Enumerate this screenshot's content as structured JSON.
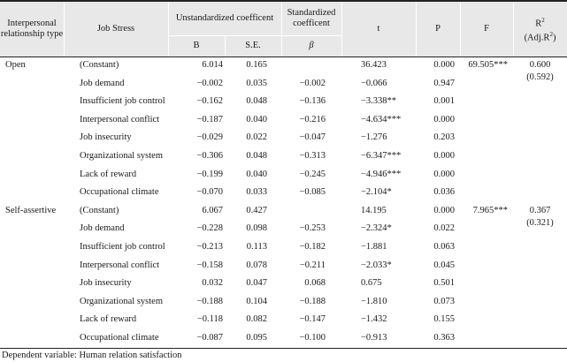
{
  "headers": {
    "type": "Interpersonal relationship type",
    "job_stress": "Job  Stress",
    "unstd": "Unstandardized  coefficent",
    "std": "Standardized coefficent",
    "t": "t",
    "p": "P",
    "f": "F",
    "r2": "R",
    "r2_sup": "2",
    "adj": "(Adj.R",
    "adj_sup": "2",
    "adj_close": ")",
    "b": "B",
    "se": "S.E.",
    "beta": "β"
  },
  "groups": [
    {
      "type": "Open",
      "f": "69.505***",
      "r2": "0.600",
      "adj_r2": "(0.592)",
      "rows": [
        {
          "stress": "(Constant)",
          "b": "6.014",
          "se": "0.165",
          "beta": "",
          "t": "36.423",
          "p": "0.000"
        },
        {
          "stress": "Job  demand",
          "b": "−0.002",
          "se": "0.035",
          "beta": "−0.002",
          "t": "−0.066",
          "p": "0.947"
        },
        {
          "stress": "Insufficient  job  control",
          "b": "−0.162",
          "se": "0.048",
          "beta": "−0.136",
          "t": "−3.338**",
          "p": "0.001"
        },
        {
          "stress": "Interpersonal  conflict",
          "b": "−0.187",
          "se": "0.040",
          "beta": "−0.216",
          "t": "−4.634***",
          "p": "0.000"
        },
        {
          "stress": "Job  insecurity",
          "b": "−0.029",
          "se": "0.022",
          "beta": "−0.047",
          "t": "−1.276",
          "p": "0.203"
        },
        {
          "stress": "Organizational  system",
          "b": "−0.306",
          "se": "0.048",
          "beta": "−0.313",
          "t": "−6.347***",
          "p": "0.000"
        },
        {
          "stress": "Lack  of  reward",
          "b": "−0.199",
          "se": "0.040",
          "beta": "−0.245",
          "t": "−4.946***",
          "p": "0.000"
        },
        {
          "stress": "Occupational  climate",
          "b": "−0.070",
          "se": "0.033",
          "beta": "−0.085",
          "t": "−2.104*",
          "p": "0.036"
        }
      ]
    },
    {
      "type": "Self-assertive",
      "f": "7.965***",
      "r2": "0.367",
      "adj_r2": "(0.321)",
      "rows": [
        {
          "stress": "(Constant)",
          "b": "6.067",
          "se": "0.427",
          "beta": "",
          "t": "14.195",
          "p": "0.000"
        },
        {
          "stress": "Job  demand",
          "b": "−0.228",
          "se": "0.098",
          "beta": "−0.253",
          "t": "−2.324*",
          "p": "0.022"
        },
        {
          "stress": "Insufficient  job  control",
          "b": "−0.213",
          "se": "0.113",
          "beta": "−0.182",
          "t": "−1.881",
          "p": "0.063"
        },
        {
          "stress": "Interpersonal  conflict",
          "b": "−0.158",
          "se": "0.078",
          "beta": "−0.211",
          "t": "−2.033*",
          "p": "0.045"
        },
        {
          "stress": "Job  insecurity",
          "b": "0.032",
          "se": "0.047",
          "beta": "0.068",
          "t": "0.675",
          "p": "0.501"
        },
        {
          "stress": "Organizational  system",
          "b": "−0.188",
          "se": "0.104",
          "beta": "−0.188",
          "t": "−1.810",
          "p": "0.073"
        },
        {
          "stress": "Lack  of  reward",
          "b": "−0.118",
          "se": "0.082",
          "beta": "−0.147",
          "t": "−1.432",
          "p": "0.155"
        },
        {
          "stress": "Occupational  climate",
          "b": "−0.087",
          "se": "0.095",
          "beta": "−0.100",
          "t": "−0.913",
          "p": "0.363"
        }
      ]
    }
  ],
  "footer": "Dependent  variable:  Human  relation  satisfaction"
}
